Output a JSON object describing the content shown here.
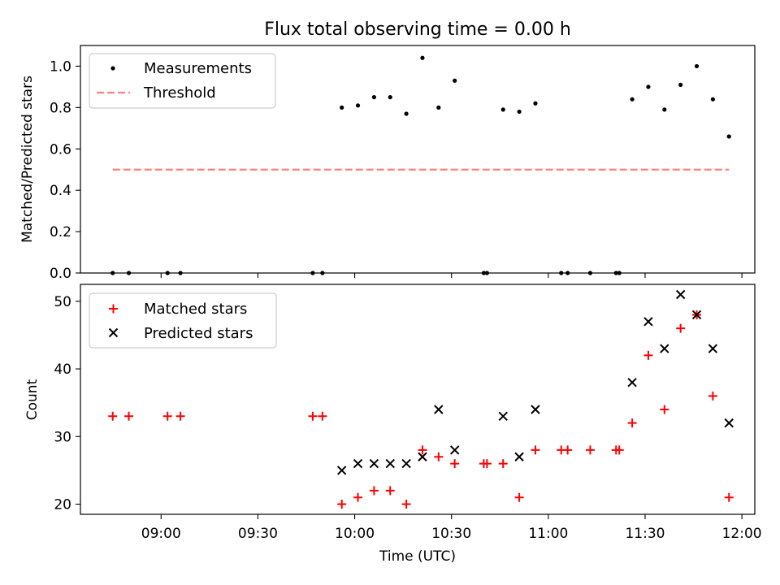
{
  "title": "Flux total observing time = 0.00 h",
  "xlabel": "Time (UTC)",
  "x_ticks": [
    {
      "t": 540,
      "label": "09:00"
    },
    {
      "t": 570,
      "label": "09:30"
    },
    {
      "t": 600,
      "label": "10:00"
    },
    {
      "t": 630,
      "label": "10:30"
    },
    {
      "t": 660,
      "label": "11:00"
    },
    {
      "t": 690,
      "label": "11:30"
    },
    {
      "t": 720,
      "label": "12:00"
    }
  ],
  "chart_data": [
    {
      "type": "scatter",
      "ylabel": "Matched/Predicted stars",
      "xlim": [
        "08:35",
        "12:04"
      ],
      "ylim": [
        0,
        1.1
      ],
      "y_ticks": [
        "0.0",
        "0.2",
        "0.4",
        "0.6",
        "0.8",
        "1.0"
      ],
      "legend_position": "top-left",
      "series": [
        {
          "name": "Measurements",
          "marker": "dot",
          "color": "#000000",
          "x": [
            "08:45",
            "08:50",
            "09:02",
            "09:06",
            "09:47",
            "09:50",
            "09:56",
            "10:01",
            "10:06",
            "10:11",
            "10:16",
            "10:21",
            "10:26",
            "10:31",
            "10:40",
            "10:41",
            "10:46",
            "10:51",
            "10:56",
            "11:04",
            "11:06",
            "11:13",
            "11:21",
            "11:22",
            "11:26",
            "11:31",
            "11:36",
            "11:41",
            "11:46",
            "11:51",
            "11:56"
          ],
          "y": [
            0,
            0,
            0,
            0,
            0,
            0,
            0.8,
            0.81,
            0.85,
            0.85,
            0.77,
            1.04,
            0.8,
            0.93,
            0,
            0,
            0.79,
            0.78,
            0.82,
            0,
            0,
            0,
            0,
            0,
            0.84,
            0.9,
            0.79,
            0.91,
            1.0,
            0.84,
            0.66
          ]
        },
        {
          "name": "Threshold",
          "line_style": "dashed",
          "color": "#ff7f7f",
          "x": [
            "08:45",
            "11:56"
          ],
          "y": [
            0.5,
            0.5
          ]
        }
      ]
    },
    {
      "type": "scatter",
      "ylabel": "Count",
      "xlabel": "Time (UTC)",
      "xlim": [
        "08:35",
        "12:04"
      ],
      "ylim": [
        18.5,
        52.5
      ],
      "y_ticks": [
        "20",
        "30",
        "40",
        "50"
      ],
      "legend_position": "top-left",
      "series": [
        {
          "name": "Matched stars",
          "marker": "plus",
          "color": "#ff0000",
          "x": [
            "08:45",
            "08:50",
            "09:02",
            "09:06",
            "09:47",
            "09:50",
            "09:56",
            "10:01",
            "10:06",
            "10:11",
            "10:16",
            "10:21",
            "10:26",
            "10:31",
            "10:40",
            "10:41",
            "10:46",
            "10:51",
            "10:56",
            "11:04",
            "11:06",
            "11:13",
            "11:21",
            "11:22",
            "11:26",
            "11:31",
            "11:36",
            "11:41",
            "11:46",
            "11:51",
            "11:56"
          ],
          "y": [
            33,
            33,
            33,
            33,
            33,
            33,
            20,
            21,
            22,
            22,
            20,
            28,
            27,
            26,
            26,
            26,
            26,
            21,
            28,
            28,
            28,
            28,
            28,
            28,
            32,
            42,
            34,
            46,
            48,
            36,
            21
          ]
        },
        {
          "name": "Predicted stars",
          "marker": "x",
          "color": "#000000",
          "x": [
            "09:56",
            "10:01",
            "10:06",
            "10:11",
            "10:16",
            "10:21",
            "10:26",
            "10:31",
            "10:46",
            "10:51",
            "10:56",
            "11:26",
            "11:31",
            "11:36",
            "11:41",
            "11:46",
            "11:51",
            "11:56"
          ],
          "y": [
            25,
            26,
            26,
            26,
            26,
            27,
            34,
            28,
            33,
            27,
            34,
            38,
            47,
            43,
            51,
            48,
            43,
            32
          ]
        }
      ]
    }
  ]
}
